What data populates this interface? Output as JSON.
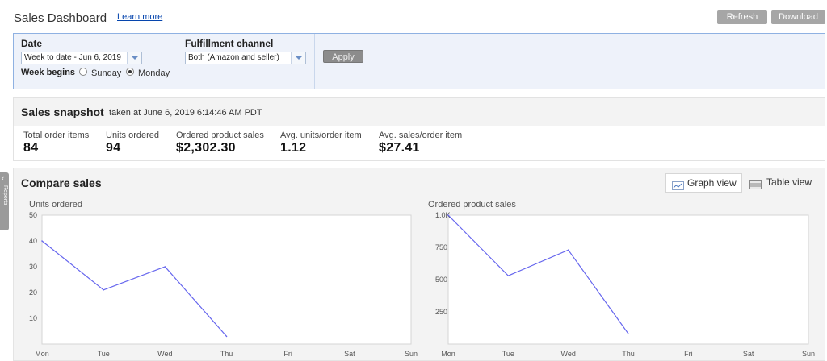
{
  "header": {
    "title": "Sales Dashboard",
    "learn_more": "Learn more",
    "refresh": "Refresh",
    "download": "Download"
  },
  "filters": {
    "date_label": "Date",
    "date_value": "Week to date - Jun 6, 2019",
    "week_begins_label": "Week begins",
    "sunday": "Sunday",
    "monday": "Monday",
    "selected_week_start": "Monday",
    "fulfillment_label": "Fulfillment channel",
    "fulfillment_value": "Both (Amazon and seller)",
    "apply": "Apply"
  },
  "snapshot": {
    "title": "Sales snapshot",
    "taken": "taken at June 6, 2019 6:14:46 AM PDT",
    "metrics": [
      {
        "label": "Total order items",
        "value": "84"
      },
      {
        "label": "Units ordered",
        "value": "94"
      },
      {
        "label": "Ordered product sales",
        "value": "$2,302.30"
      },
      {
        "label": "Avg. units/order item",
        "value": "1.12"
      },
      {
        "label": "Avg. sales/order item",
        "value": "$27.41"
      }
    ]
  },
  "compare": {
    "title": "Compare sales",
    "graph_view": "Graph view",
    "table_view": "Table view",
    "active_view": "Graph view"
  },
  "side_tab": {
    "label": "Reports"
  },
  "colors": {
    "line": "#6666ee",
    "accent_border": "#8fb1e2",
    "link": "#0645ad"
  },
  "chart_data": [
    {
      "type": "line",
      "title": "Units ordered",
      "categories": [
        "Mon",
        "Tue",
        "Wed",
        "Thu",
        "Fri",
        "Sat",
        "Sun"
      ],
      "series": [
        {
          "values": [
            40,
            21,
            30,
            3,
            null,
            null,
            null
          ]
        }
      ],
      "ylim": [
        0,
        50
      ],
      "yticks": [
        10,
        20,
        30,
        40,
        50
      ],
      "ytick_labels": [
        "10",
        "20",
        "30",
        "40",
        "50"
      ],
      "grid": false
    },
    {
      "type": "line",
      "title": "Ordered product sales",
      "categories": [
        "Mon",
        "Tue",
        "Wed",
        "Thu",
        "Fri",
        "Sat",
        "Sun"
      ],
      "series": [
        {
          "values": [
            1000,
            530,
            730,
            80,
            null,
            null,
            null
          ]
        }
      ],
      "ylim": [
        0,
        1000
      ],
      "yticks": [
        250,
        500,
        750,
        1000
      ],
      "ytick_labels": [
        "250",
        "500",
        "750",
        "1.0K"
      ],
      "grid": false
    }
  ]
}
